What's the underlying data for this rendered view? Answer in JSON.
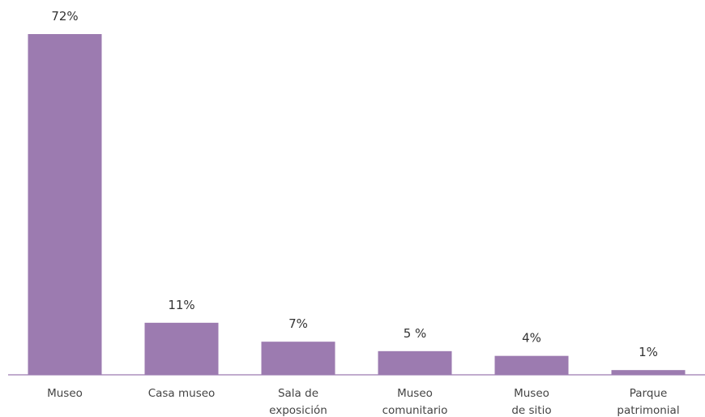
{
  "chart_data": {
    "type": "bar",
    "categories": [
      [
        "Museo"
      ],
      [
        "Casa museo"
      ],
      [
        "Sala de",
        "exposición"
      ],
      [
        "Museo",
        "comunitario"
      ],
      [
        "Museo",
        "de sitio"
      ],
      [
        "Parque",
        "patrimonial"
      ]
    ],
    "values": [
      72,
      11,
      7,
      5,
      4,
      1
    ],
    "value_labels": [
      "72%",
      "11%",
      "7%",
      "5 %",
      "4%",
      "1%"
    ],
    "title": "",
    "xlabel": "",
    "ylabel": "",
    "ylim": [
      0,
      72
    ],
    "grid": false,
    "legend": "none",
    "bar_color": "#9c7bb0",
    "axis_color": "#9c7bb0"
  }
}
